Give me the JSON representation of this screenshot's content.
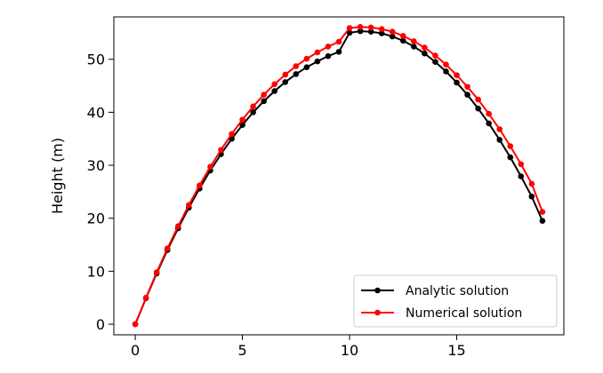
{
  "chart_data": {
    "type": "line",
    "title": "",
    "xlabel": "",
    "ylabel": "Height (m)",
    "xlim": [
      -1,
      20
    ],
    "ylim": [
      -2,
      58
    ],
    "xticks": [
      0,
      5,
      10,
      15
    ],
    "yticks": [
      0,
      10,
      20,
      30,
      40,
      50
    ],
    "legend_position": "lower right",
    "grid": false,
    "series": [
      {
        "name": "Analytic solution",
        "color": "#000000",
        "marker": "circle",
        "x": [
          0,
          0.5,
          1,
          1.5,
          2,
          2.5,
          3,
          3.5,
          4,
          4.5,
          5,
          5.5,
          6,
          6.5,
          7,
          7.5,
          8,
          8.5,
          9,
          9.5,
          10,
          10.5,
          11,
          11.5,
          12,
          12.5,
          13,
          13.5,
          14,
          14.5,
          15,
          15.5,
          16,
          16.5,
          17,
          17.5,
          18,
          18.5,
          19
        ],
        "y": [
          0,
          4.9,
          9.6,
          14.0,
          18.1,
          22.0,
          25.6,
          29.0,
          32.1,
          35.0,
          37.6,
          40.0,
          42.1,
          44.0,
          45.7,
          47.2,
          48.5,
          49.6,
          50.6,
          51.4,
          55.0,
          55.3,
          55.2,
          54.9,
          54.3,
          53.5,
          52.4,
          51.1,
          49.5,
          47.7,
          45.6,
          43.3,
          40.7,
          37.9,
          34.8,
          31.5,
          27.9,
          24.1,
          19.5
        ]
      },
      {
        "name": "Numerical solution",
        "color": "#ff0000",
        "marker": "circle",
        "x": [
          0,
          0.5,
          1,
          1.5,
          2,
          2.5,
          3,
          3.5,
          4,
          4.5,
          5,
          5.5,
          6,
          6.5,
          7,
          7.5,
          8,
          8.5,
          9,
          9.5,
          10,
          10.5,
          11,
          11.5,
          12,
          12.5,
          13,
          13.5,
          14,
          14.5,
          15,
          15.5,
          16,
          16.5,
          17,
          17.5,
          18,
          18.5,
          19
        ],
        "y": [
          0,
          5.0,
          9.8,
          14.3,
          18.5,
          22.5,
          26.2,
          29.7,
          32.9,
          35.9,
          38.6,
          41.1,
          43.3,
          45.3,
          47.1,
          48.7,
          50.1,
          51.3,
          52.4,
          53.3,
          55.9,
          56.1,
          56.0,
          55.7,
          55.2,
          54.4,
          53.4,
          52.2,
          50.7,
          49.0,
          47.0,
          44.8,
          42.4,
          39.7,
          36.8,
          33.6,
          30.2,
          26.5,
          21.2
        ]
      }
    ]
  }
}
